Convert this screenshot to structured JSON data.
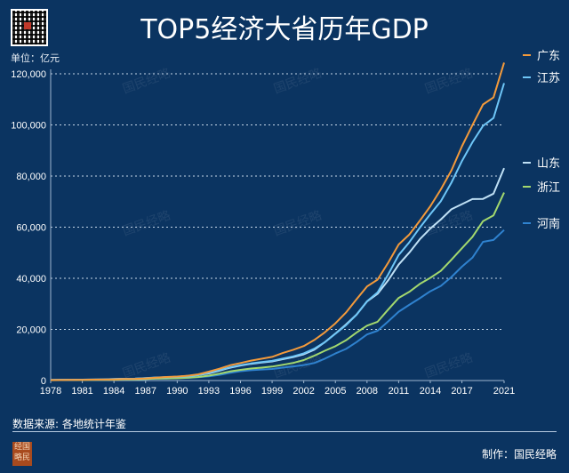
{
  "header": {
    "title": "TOP5经济大省历年GDP",
    "unit": "单位：亿元"
  },
  "footer": {
    "source": "数据来源: 各地统计年鉴",
    "maker": "制作：国民经略",
    "seal_text": "经国略民"
  },
  "watermark": "国民经略",
  "chart_data": {
    "type": "line",
    "title": "TOP5经济大省历年GDP",
    "ylabel": "单位：亿元",
    "ylim": [
      0,
      120000
    ],
    "yticks": [
      0,
      20000,
      40000,
      60000,
      80000,
      100000,
      120000
    ],
    "ytick_labels": [
      "0",
      "20,000",
      "40,000",
      "60,000",
      "80,000",
      "100,000",
      "120,000"
    ],
    "xlim": [
      1978,
      2021
    ],
    "xticks": [
      1978,
      1981,
      1984,
      1987,
      1990,
      1993,
      1996,
      1999,
      2002,
      2005,
      2008,
      2011,
      2014,
      2017,
      2021
    ],
    "grid": true,
    "legend_position": "right",
    "x_start": 1978,
    "series": [
      {
        "name": "广东",
        "color": "#f39a3b",
        "values": [
          186,
          209,
          250,
          290,
          339,
          369,
          459,
          577,
          667,
          846,
          1155,
          1381,
          1559,
          1893,
          2448,
          3469,
          4619,
          5933,
          6835,
          7775,
          8531,
          9251,
          10741,
          12039,
          13502,
          15845,
          18865,
          22367,
          26588,
          31777,
          36797,
          39483,
          46014,
          53210,
          57068,
          62475,
          68173,
          74732,
          82163,
          91649,
          99945,
          107987,
          110761,
          124370
        ]
      },
      {
        "name": "江苏",
        "color": "#6ec6f7",
        "values": [
          249,
          298,
          320,
          350,
          390,
          438,
          519,
          652,
          745,
          922,
          1209,
          1322,
          1417,
          1601,
          2136,
          2998,
          4057,
          5155,
          6004,
          6680,
          7200,
          7697,
          8583,
          9457,
          10632,
          12443,
          15004,
          18306,
          21645,
          25741,
          30982,
          34457,
          41425,
          49110,
          54058,
          59753,
          65088,
          70116,
          77388,
          85870,
          93208,
          99632,
          102719,
          116364
        ]
      },
      {
        "name": "山东",
        "color": "#bfe0f5",
        "values": [
          225,
          265,
          292,
          346,
          395,
          459,
          581,
          680,
          742,
          893,
          1118,
          1294,
          1511,
          1810,
          2197,
          2779,
          3844,
          5002,
          5884,
          6537,
          7021,
          7493,
          8337,
          9195,
          10275,
          12078,
          15021,
          18366,
          21900,
          25776,
          30933,
          33896,
          39170,
          45362,
          50013,
          55230,
          59427,
          63002,
          67008,
          69000,
          71000,
          71068,
          73129,
          83096
        ]
      },
      {
        "name": "浙江",
        "color": "#a3d86e",
        "values": [
          124,
          157,
          180,
          204,
          234,
          257,
          323,
          429,
          502,
          606,
          770,
          850,
          905,
          1089,
          1376,
          1926,
          2689,
          3558,
          4189,
          4686,
          5052,
          5444,
          6141,
          6898,
          8004,
          9705,
          11649,
          13418,
          15718,
          18754,
          21463,
          22990,
          27722,
          32319,
          34665,
          37757,
          40173,
          42886,
          47251,
          51768,
          56197,
          62352,
          64613,
          73516
        ]
      },
      {
        "name": "河南",
        "color": "#2f82cf",
        "values": [
          163,
          190,
          229,
          249,
          263,
          328,
          370,
          452,
          502,
          610,
          749,
          851,
          935,
          1045,
          1279,
          1661,
          2217,
          2988,
          3635,
          4041,
          4308,
          4518,
          5053,
          5533,
          6035,
          6868,
          8554,
          10587,
          12362,
          15012,
          18018,
          19480,
          23092,
          26931,
          29599,
          32191,
          34938,
          37002,
          40471,
          44553,
          48056,
          54259,
          54997,
          58887
        ]
      }
    ]
  }
}
